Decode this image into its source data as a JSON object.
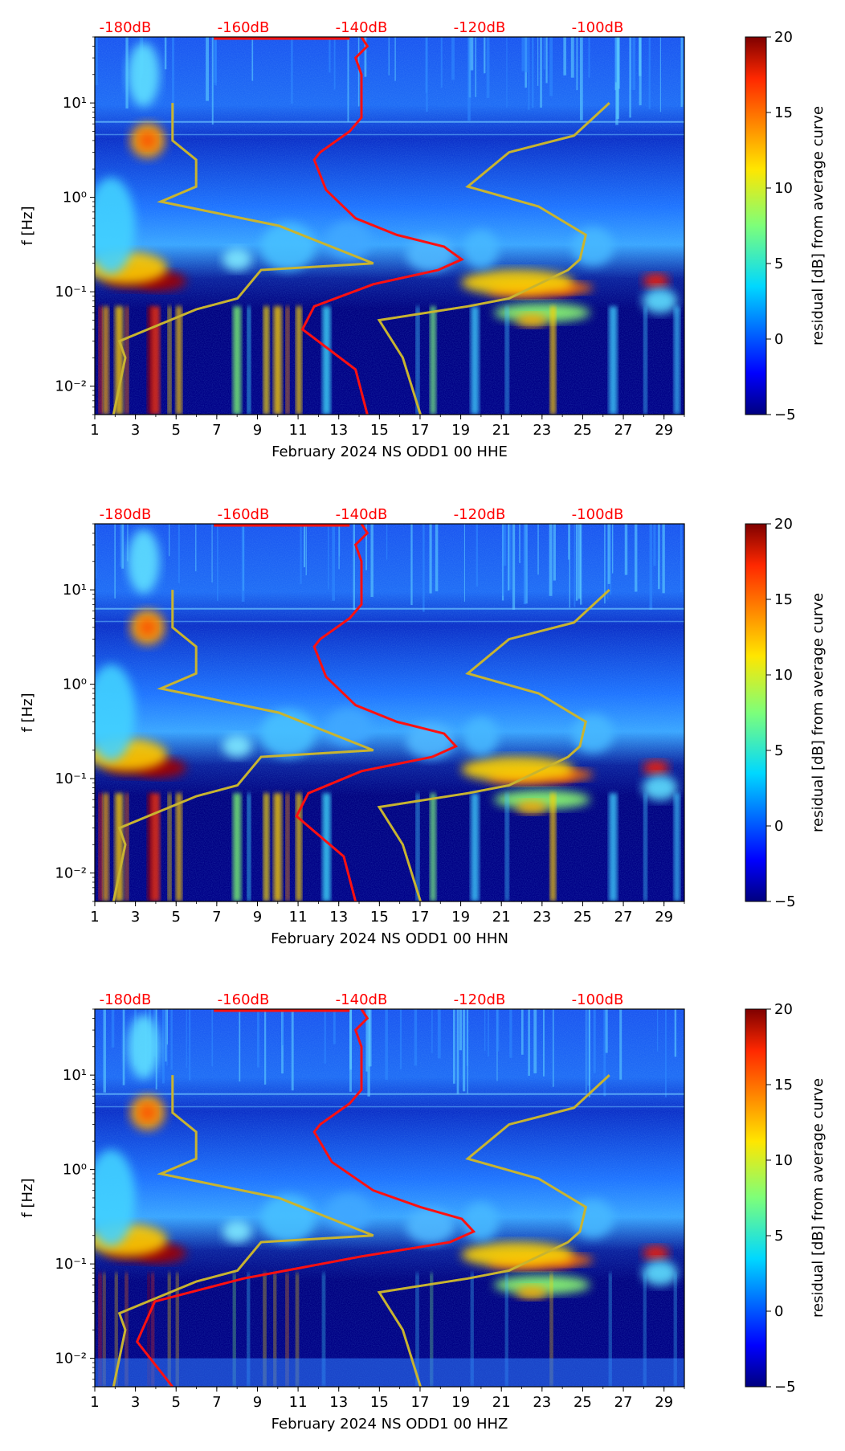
{
  "charts": [
    {
      "xlabel": "February 2024 NS ODD1 00 HHE",
      "ylabel": "f [Hz]",
      "cbar_label": "residual [dB] from average curve"
    },
    {
      "xlabel": "February 2024 NS ODD1 00 HHN",
      "ylabel": "f [Hz]",
      "cbar_label": "residual [dB] from average curve"
    },
    {
      "xlabel": "February 2024 NS ODD1 00 HHZ",
      "ylabel": "f [Hz]",
      "cbar_label": "residual [dB] from average curve"
    }
  ],
  "x_ticks": [
    "1",
    "3",
    "5",
    "7",
    "9",
    "11",
    "13",
    "15",
    "17",
    "19",
    "21",
    "23",
    "25",
    "27",
    "29"
  ],
  "y_ticks": [
    "10⁻²",
    "10⁻¹",
    "10⁰",
    "10¹"
  ],
  "top_ticks": [
    "-180dB",
    "-160dB",
    "-140dB",
    "-120dB",
    "-100dB"
  ],
  "cbar_ticks": [
    "20",
    "15",
    "10",
    "5",
    "0",
    "−5"
  ],
  "colors": {
    "psd_curve": "#ff1010",
    "noise_model": "#c8b430",
    "top_labels": "#ff0000"
  },
  "chart_data": [
    {
      "type": "heatmap",
      "xlabel": "February 2024 NS ODD1 00 HHE",
      "ylabel": "f [Hz]",
      "xlim": [
        1,
        30
      ],
      "ylim": [
        0.005,
        50
      ],
      "yscale": "log",
      "colorbar": {
        "label": "residual [dB] from average curve",
        "range": [
          -5,
          20
        ],
        "colormap": "jet"
      },
      "top_axis": {
        "ticks": [
          -180,
          -160,
          -140,
          -120,
          -100
        ],
        "unit": "dB"
      },
      "series": [
        {
          "db": [
            -140,
            -139,
            -141,
            -140,
            -140,
            -140,
            -142,
            -147,
            -148,
            -146,
            -141,
            -134,
            -126,
            -123,
            -127,
            -138,
            -148,
            -150,
            -141,
            -139
          ],
          "freq": [
            50,
            40,
            30,
            20,
            10,
            7,
            5,
            3,
            2.5,
            1.2,
            0.6,
            0.4,
            0.3,
            0.22,
            0.17,
            0.12,
            0.07,
            0.04,
            0.015,
            0.005
          ]
        },
        {
          "noise_model_db": [
            -172,
            -172,
            -168,
            -168,
            -174,
            -154,
            -138,
            -157,
            -161,
            -168,
            -181,
            -180,
            -182
          ],
          "noise_model_freq": [
            10,
            4,
            2.5,
            1.3,
            0.9,
            0.5,
            0.2,
            0.17,
            0.085,
            0.065,
            0.03,
            0.02,
            0.005
          ]
        },
        {
          "noise_model_db": [
            -98,
            -104,
            -115,
            -122,
            -110,
            -102,
            -103,
            -105,
            -115,
            -122,
            -137,
            -133,
            -130
          ],
          "noise_model_freq": [
            10,
            4.5,
            3,
            1.3,
            0.8,
            0.4,
            0.22,
            0.17,
            0.085,
            0.07,
            0.05,
            0.02,
            0.005
          ]
        }
      ]
    },
    {
      "type": "heatmap",
      "xlabel": "February 2024 NS ODD1 00 HHN",
      "ylabel": "f [Hz]",
      "xlim": [
        1,
        30
      ],
      "ylim": [
        0.005,
        50
      ],
      "yscale": "log",
      "colorbar": {
        "label": "residual [dB] from average curve",
        "range": [
          -5,
          20
        ],
        "colormap": "jet"
      },
      "top_axis": {
        "ticks": [
          -180,
          -160,
          -140,
          -120,
          -100
        ],
        "unit": "dB"
      },
      "series": [
        {
          "db": [
            -140,
            -139,
            -141,
            -140,
            -140,
            -140,
            -142,
            -147,
            -148,
            -146,
            -141,
            -134,
            -126,
            -124,
            -128,
            -140,
            -149,
            -151,
            -143,
            -141
          ],
          "freq": [
            50,
            40,
            30,
            20,
            10,
            7,
            5,
            3,
            2.5,
            1.2,
            0.6,
            0.4,
            0.3,
            0.22,
            0.17,
            0.12,
            0.07,
            0.04,
            0.015,
            0.005
          ]
        }
      ]
    },
    {
      "type": "heatmap",
      "xlabel": "February 2024 NS ODD1 00 HHZ",
      "ylabel": "f [Hz]",
      "xlim": [
        1,
        30
      ],
      "ylim": [
        0.005,
        50
      ],
      "yscale": "log",
      "colorbar": {
        "label": "residual [dB] from average curve",
        "range": [
          -5,
          20
        ],
        "colormap": "jet"
      },
      "top_axis": {
        "ticks": [
          -180,
          -160,
          -140,
          -120,
          -100
        ],
        "unit": "dB"
      },
      "series": [
        {
          "db": [
            -140,
            -139,
            -141,
            -140,
            -140,
            -140,
            -142,
            -147,
            -148,
            -145,
            -138,
            -130,
            -123,
            -121,
            -125,
            -140,
            -160,
            -175,
            -178,
            -172
          ],
          "freq": [
            50,
            40,
            30,
            20,
            10,
            7,
            5,
            3,
            2.5,
            1.2,
            0.6,
            0.4,
            0.3,
            0.22,
            0.17,
            0.12,
            0.07,
            0.04,
            0.015,
            0.005
          ]
        }
      ]
    }
  ]
}
